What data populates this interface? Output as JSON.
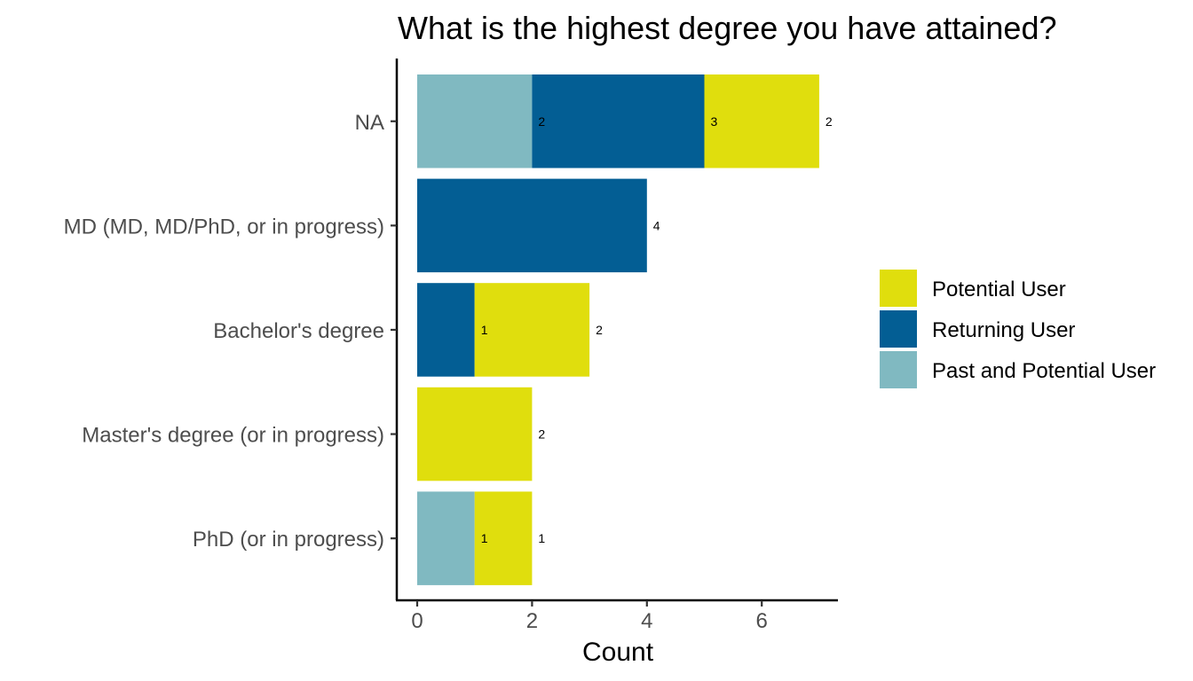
{
  "chart_data": {
    "type": "bar",
    "orientation": "horizontal",
    "stacked": true,
    "title": "What is the highest degree you have attained?",
    "xlabel": "Count",
    "ylabel": "",
    "xlim": [
      0,
      7
    ],
    "x_ticks": [
      0,
      2,
      4,
      6
    ],
    "categories": [
      "NA",
      "MD (MD, MD/PhD, or in progress)",
      "Bachelor's degree",
      "Master's degree (or in progress)",
      "PhD (or in progress)"
    ],
    "stack_order": [
      "Past and Potential User",
      "Returning User",
      "Potential User"
    ],
    "series": [
      {
        "name": "Potential User",
        "color": "#e0de0d",
        "values": [
          2,
          0,
          2,
          2,
          1
        ]
      },
      {
        "name": "Returning User",
        "color": "#035e94",
        "values": [
          3,
          4,
          1,
          0,
          0
        ]
      },
      {
        "name": "Past and Potential User",
        "color": "#80b9c1",
        "values": [
          2,
          0,
          0,
          0,
          1
        ]
      }
    ],
    "legend": {
      "position": "right",
      "entries": [
        "Potential User",
        "Returning User",
        "Past and Potential User"
      ]
    },
    "grid": false
  }
}
